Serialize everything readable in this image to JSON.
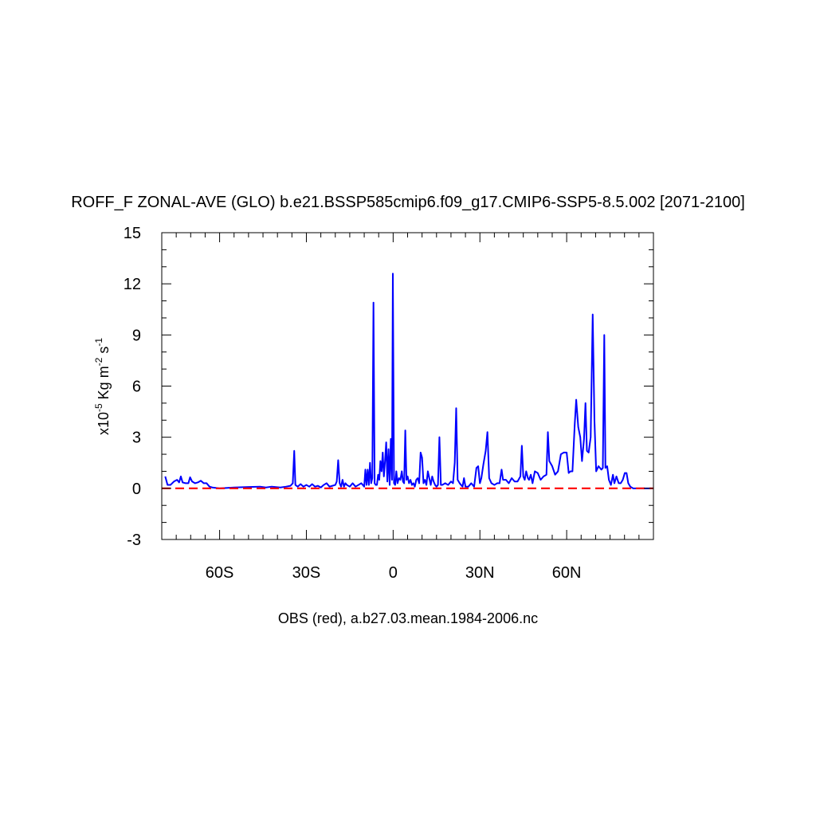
{
  "chart_data": {
    "type": "line",
    "title": "ROFF_F ZONAL-AVE (GLO) b.e21.BSSP585cmip6.f09_g17.CMIP6-SSP5-8.5.002 [2071-2100]",
    "ylabel": {
      "prefix": "x10",
      "exp1": "-5",
      "mid": " Kg m",
      "exp2": "-2",
      "mid2": " s",
      "exp3": "-1"
    },
    "xlabel": "OBS (red), a.b27.03.mean.1984-2006.nc",
    "xlim": [
      -80,
      90
    ],
    "ylim": [
      -3,
      15
    ],
    "x_ticks": [
      {
        "value": -60,
        "label": "60S"
      },
      {
        "value": -30,
        "label": "30S"
      },
      {
        "value": 0,
        "label": "0"
      },
      {
        "value": 30,
        "label": "30N"
      },
      {
        "value": 60,
        "label": "60N"
      }
    ],
    "y_ticks": [
      {
        "value": -3,
        "label": "-3"
      },
      {
        "value": 0,
        "label": "0"
      },
      {
        "value": 3,
        "label": "3"
      },
      {
        "value": 6,
        "label": "6"
      },
      {
        "value": 9,
        "label": "9"
      },
      {
        "value": 12,
        "label": "12"
      },
      {
        "value": 15,
        "label": "15"
      }
    ],
    "series": [
      {
        "color": "#0000ff",
        "style": "solid",
        "points": [
          [
            -78.8,
            0.7
          ],
          [
            -78,
            0.2
          ],
          [
            -77,
            0.2
          ],
          [
            -75.8,
            0.4
          ],
          [
            -74.7,
            0.5
          ],
          [
            -74,
            0.35
          ],
          [
            -73.4,
            0.7
          ],
          [
            -72.8,
            0.35
          ],
          [
            -71.7,
            0.3
          ],
          [
            -70.8,
            0.3
          ],
          [
            -70.2,
            0.65
          ],
          [
            -69.5,
            0.4
          ],
          [
            -68.5,
            0.3
          ],
          [
            -67.5,
            0.35
          ],
          [
            -66.5,
            0.45
          ],
          [
            -65.5,
            0.3
          ],
          [
            -64.5,
            0.3
          ],
          [
            -63.5,
            0.1
          ],
          [
            -62.5,
            0.05
          ],
          [
            -60,
            0.0
          ],
          [
            -55,
            0.05
          ],
          [
            -50,
            0.08
          ],
          [
            -46,
            0.1
          ],
          [
            -44,
            0.05
          ],
          [
            -42,
            0.1
          ],
          [
            -39,
            0.05
          ],
          [
            -37,
            0.1
          ],
          [
            -35.5,
            0.15
          ],
          [
            -34.7,
            0.3
          ],
          [
            -34.2,
            2.2
          ],
          [
            -33.8,
            0.2
          ],
          [
            -33,
            0.1
          ],
          [
            -32,
            0.25
          ],
          [
            -31,
            0.1
          ],
          [
            -30,
            0.2
          ],
          [
            -29,
            0.1
          ],
          [
            -28,
            0.25
          ],
          [
            -27,
            0.1
          ],
          [
            -26,
            0.15
          ],
          [
            -25,
            0.05
          ],
          [
            -24,
            0.2
          ],
          [
            -23,
            0.3
          ],
          [
            -22,
            0.1
          ],
          [
            -21,
            0.15
          ],
          [
            -20,
            0.2
          ],
          [
            -19.5,
            0.4
          ],
          [
            -19,
            1.65
          ],
          [
            -18.5,
            0.3
          ],
          [
            -18,
            0.1
          ],
          [
            -17.5,
            0.5
          ],
          [
            -17,
            0.1
          ],
          [
            -16.5,
            0.3
          ],
          [
            -16,
            0.2
          ],
          [
            -15,
            0.1
          ],
          [
            -14,
            0.3
          ],
          [
            -13,
            0.1
          ],
          [
            -12,
            0.2
          ],
          [
            -11,
            0.3
          ],
          [
            -10,
            0.1
          ],
          [
            -9.6,
            1.1
          ],
          [
            -9.2,
            0.2
          ],
          [
            -8.8,
            1.1
          ],
          [
            -8.4,
            0.2
          ],
          [
            -8,
            1.5
          ],
          [
            -7.6,
            0.3
          ],
          [
            -7.2,
            0.6
          ],
          [
            -6.8,
            10.9
          ],
          [
            -6.4,
            0.3
          ],
          [
            -6,
            0.2
          ],
          [
            -5.6,
            0.2
          ],
          [
            -5.2,
            0.8
          ],
          [
            -4.8,
            0.5
          ],
          [
            -4.4,
            1.6
          ],
          [
            -4,
            1.0
          ],
          [
            -3.6,
            2.1
          ],
          [
            -3.2,
            0.7
          ],
          [
            -2.8,
            1.6
          ],
          [
            -2.4,
            2.7
          ],
          [
            -2,
            0.4
          ],
          [
            -1.6,
            2.3
          ],
          [
            -1.2,
            0.2
          ],
          [
            -0.8,
            2.9
          ],
          [
            -0.4,
            0.5
          ],
          [
            -0.1,
            12.6
          ],
          [
            0.3,
            0.3
          ],
          [
            0.7,
            0.2
          ],
          [
            1.1,
            1.0
          ],
          [
            1.5,
            0.3
          ],
          [
            2,
            0.6
          ],
          [
            2.5,
            0.5
          ],
          [
            3,
            1.0
          ],
          [
            3.4,
            0.4
          ],
          [
            3.8,
            0.3
          ],
          [
            4.2,
            3.4
          ],
          [
            4.6,
            0.5
          ],
          [
            5,
            0.7
          ],
          [
            5.5,
            0.3
          ],
          [
            6,
            0.5
          ],
          [
            6.5,
            0.2
          ],
          [
            7,
            0.3
          ],
          [
            7.5,
            0.1
          ],
          [
            8,
            0.5
          ],
          [
            8.5,
            0.6
          ],
          [
            9,
            0.3
          ],
          [
            9.5,
            2.1
          ],
          [
            10,
            1.8
          ],
          [
            10.5,
            0.3
          ],
          [
            11,
            0.5
          ],
          [
            11.5,
            0.2
          ],
          [
            12,
            1.0
          ],
          [
            12.5,
            0.6
          ],
          [
            13,
            0.2
          ],
          [
            13.5,
            0.7
          ],
          [
            14,
            0.4
          ],
          [
            14.5,
            0.2
          ],
          [
            15,
            0.1
          ],
          [
            15.5,
            0.2
          ],
          [
            16,
            3.0
          ],
          [
            16.5,
            0.2
          ],
          [
            17,
            0.2
          ],
          [
            18,
            0.3
          ],
          [
            19,
            0.2
          ],
          [
            20,
            0.4
          ],
          [
            20.7,
            0.3
          ],
          [
            21.3,
            1.5
          ],
          [
            21.8,
            4.7
          ],
          [
            22.3,
            0.5
          ],
          [
            23,
            0.3
          ],
          [
            24,
            0.1
          ],
          [
            24.5,
            0.6
          ],
          [
            25,
            0.1
          ],
          [
            26,
            0.1
          ],
          [
            27,
            0.3
          ],
          [
            28,
            0.1
          ],
          [
            28.8,
            1.2
          ],
          [
            29.4,
            1.3
          ],
          [
            30,
            0.3
          ],
          [
            30.5,
            0.6
          ],
          [
            31.2,
            1.4
          ],
          [
            32,
            2.2
          ],
          [
            32.6,
            3.3
          ],
          [
            33.2,
            0.6
          ],
          [
            34,
            0.3
          ],
          [
            35,
            0.2
          ],
          [
            36,
            0.3
          ],
          [
            36.8,
            0.3
          ],
          [
            37.5,
            1.1
          ],
          [
            38,
            0.5
          ],
          [
            39,
            0.5
          ],
          [
            40,
            0.3
          ],
          [
            41,
            0.6
          ],
          [
            42,
            0.4
          ],
          [
            43,
            0.4
          ],
          [
            44,
            0.7
          ],
          [
            44.5,
            2.5
          ],
          [
            45,
            0.7
          ],
          [
            45.5,
            0.5
          ],
          [
            46,
            1.0
          ],
          [
            46.6,
            0.6
          ],
          [
            47,
            0.5
          ],
          [
            47.6,
            0.8
          ],
          [
            48.2,
            0.3
          ],
          [
            49,
            1.0
          ],
          [
            50,
            0.9
          ],
          [
            51,
            0.5
          ],
          [
            52,
            0.7
          ],
          [
            53,
            0.8
          ],
          [
            53.5,
            3.3
          ],
          [
            54,
            1.6
          ],
          [
            55,
            1.3
          ],
          [
            56,
            0.8
          ],
          [
            57,
            1.0
          ],
          [
            58,
            2.0
          ],
          [
            59,
            2.1
          ],
          [
            60,
            2.1
          ],
          [
            60.7,
            0.9
          ],
          [
            61.3,
            1.0
          ],
          [
            62,
            1.0
          ],
          [
            62.8,
            3.8
          ],
          [
            63.3,
            5.2
          ],
          [
            64,
            3.6
          ],
          [
            64.7,
            3.0
          ],
          [
            65.3,
            1.6
          ],
          [
            66,
            2.9
          ],
          [
            66.5,
            5.0
          ],
          [
            67,
            2.2
          ],
          [
            67.6,
            2.1
          ],
          [
            68.3,
            3.0
          ],
          [
            69,
            10.2
          ],
          [
            69.6,
            4.0
          ],
          [
            70.2,
            1.0
          ],
          [
            71,
            1.3
          ],
          [
            72,
            1.1
          ],
          [
            72.5,
            1.2
          ],
          [
            73,
            9.0
          ],
          [
            73.4,
            1.2
          ],
          [
            74,
            1.3
          ],
          [
            74.6,
            0.5
          ],
          [
            75.3,
            0.2
          ],
          [
            76,
            0.8
          ],
          [
            76.5,
            0.3
          ],
          [
            77.2,
            0.7
          ],
          [
            78,
            0.3
          ],
          [
            78.7,
            0.3
          ],
          [
            79.4,
            0.5
          ],
          [
            80.1,
            0.9
          ],
          [
            80.7,
            0.9
          ],
          [
            81.3,
            0.3
          ],
          [
            82,
            0.1
          ],
          [
            83,
            0.0
          ],
          [
            84,
            0.0
          ],
          [
            86,
            0.0
          ],
          [
            89.5,
            0.0
          ]
        ]
      },
      {
        "color": "#ff0000",
        "style": "dashed",
        "points": [
          [
            -80,
            0.0
          ],
          [
            90,
            0.0
          ]
        ]
      }
    ]
  }
}
